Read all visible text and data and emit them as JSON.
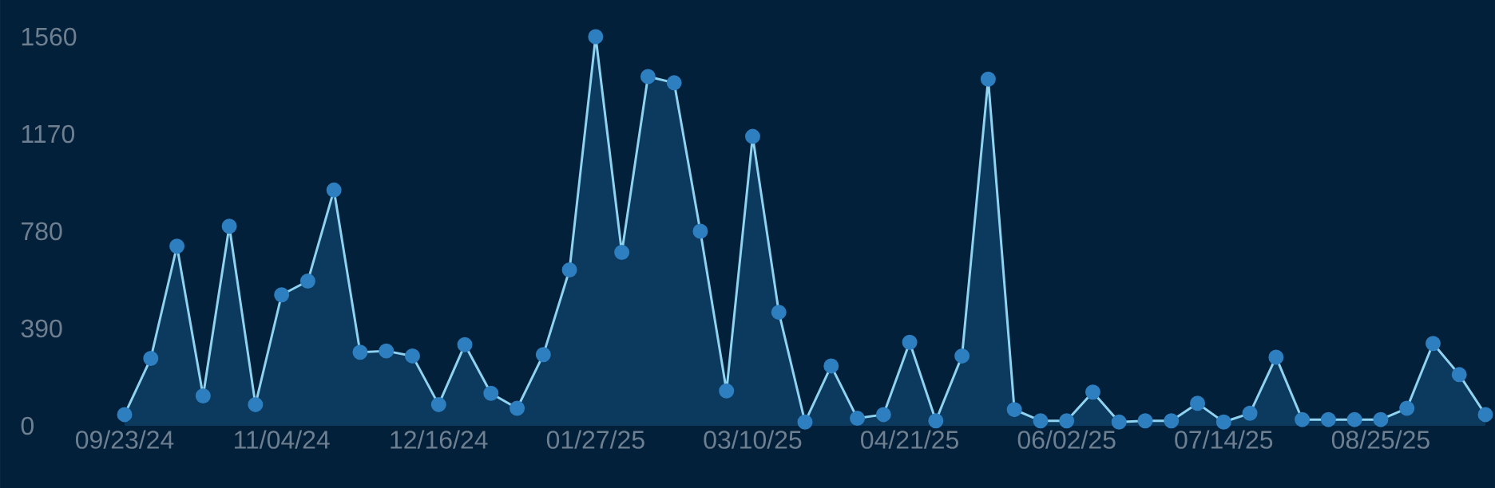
{
  "chart_data": {
    "type": "area",
    "x": [
      "2024-09-23",
      "2024-09-30",
      "2024-10-07",
      "2024-10-14",
      "2024-10-21",
      "2024-10-28",
      "2024-11-04",
      "2024-11-11",
      "2024-11-18",
      "2024-11-25",
      "2024-12-02",
      "2024-12-09",
      "2024-12-16",
      "2024-12-23",
      "2024-12-30",
      "2025-01-06",
      "2025-01-13",
      "2025-01-20",
      "2025-01-27",
      "2025-02-03",
      "2025-02-10",
      "2025-02-17",
      "2025-02-24",
      "2025-03-03",
      "2025-03-10",
      "2025-03-17",
      "2025-03-24",
      "2025-03-31",
      "2025-04-07",
      "2025-04-14",
      "2025-04-21",
      "2025-04-28",
      "2025-05-05",
      "2025-05-12",
      "2025-05-19",
      "2025-05-26",
      "2025-06-02",
      "2025-06-09",
      "2025-06-16",
      "2025-06-23",
      "2025-06-30",
      "2025-07-07",
      "2025-07-14",
      "2025-07-21",
      "2025-07-28",
      "2025-08-04",
      "2025-08-11",
      "2025-08-18",
      "2025-08-25",
      "2025-09-01",
      "2025-09-08",
      "2025-09-15",
      "2025-09-22"
    ],
    "values": [
      45,
      270,
      720,
      120,
      800,
      85,
      525,
      580,
      945,
      295,
      300,
      280,
      85,
      325,
      130,
      70,
      285,
      625,
      1560,
      695,
      1400,
      1375,
      780,
      140,
      1160,
      455,
      15,
      240,
      30,
      45,
      335,
      20,
      280,
      1390,
      65,
      20,
      20,
      135,
      15,
      20,
      20,
      90,
      15,
      50,
      275,
      25,
      25,
      25,
      25,
      70,
      330,
      205,
      45
    ],
    "color": "#8fd3f0",
    "marker": "circle",
    "line_style": "solid",
    "grid": false,
    "xlim": [
      "2024-09-23",
      "2025-09-22"
    ],
    "xticks": [
      {
        "value": "2024-09-23",
        "label": "09/23/24"
      },
      {
        "value": "2024-11-04",
        "label": "11/04/24"
      },
      {
        "value": "2024-12-16",
        "label": "12/16/24"
      },
      {
        "value": "2025-01-27",
        "label": "01/27/25"
      },
      {
        "value": "2025-03-10",
        "label": "03/10/25"
      },
      {
        "value": "2025-04-21",
        "label": "04/21/25"
      },
      {
        "value": "2025-06-02",
        "label": "06/02/25"
      },
      {
        "value": "2025-07-14",
        "label": "07/14/25"
      },
      {
        "value": "2025-08-25",
        "label": "08/25/25"
      }
    ],
    "ylim": [
      0,
      1560
    ],
    "yticks": [
      0,
      390,
      780,
      1170,
      1560
    ]
  }
}
